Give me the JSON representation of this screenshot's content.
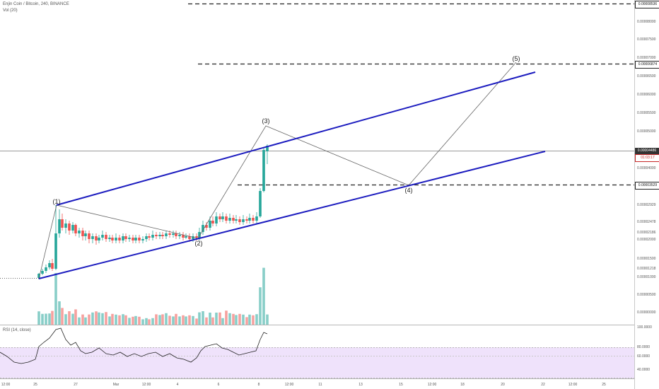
{
  "legend": {
    "main": "Enjin Coin / Bitcoin, 240, BINANCE",
    "volume": "Vol (20)",
    "rsi": "RSI (14, close)"
  },
  "price_axis": {
    "labels": [
      "0.00008000",
      "0.00007500",
      "0.00007000",
      "0.00006500",
      "0.00006000",
      "0.00005500",
      "0.00005000",
      "0.00004000",
      "0.00002929",
      "0.00002478",
      "0.00002186",
      "0.00002000",
      "0.00001500",
      "0.00001218",
      "0.00001000",
      "0.00000500",
      "0.00000000"
    ],
    "tag_top": "0.00008536",
    "tag_resistance": "0.00006874",
    "tag_current": "0.00004486",
    "tag_countdown": "01:03:17",
    "tag_support": "0.00003529"
  },
  "rsi_axis": {
    "labels": [
      "100.0000",
      "80.0000",
      "60.0000",
      "40.0000"
    ]
  },
  "time_axis": {
    "labels": [
      "12:00",
      "25",
      "27",
      "Mar",
      "12:00",
      "4",
      "6",
      "8",
      "12:00",
      "11",
      "13",
      "15",
      "12:00",
      "18",
      "20",
      "22",
      "12:00",
      "25"
    ]
  },
  "waves": {
    "w1": "(1)",
    "w2": "(2)",
    "w3": "(3)",
    "w4": "(4)",
    "w5": "(5)"
  },
  "colors": {
    "up": "#26a69a",
    "down": "#ef5350",
    "channel": "#1c1cbf",
    "rsi_band": "#efe2fb",
    "current_price_tag": "#333333"
  }
}
